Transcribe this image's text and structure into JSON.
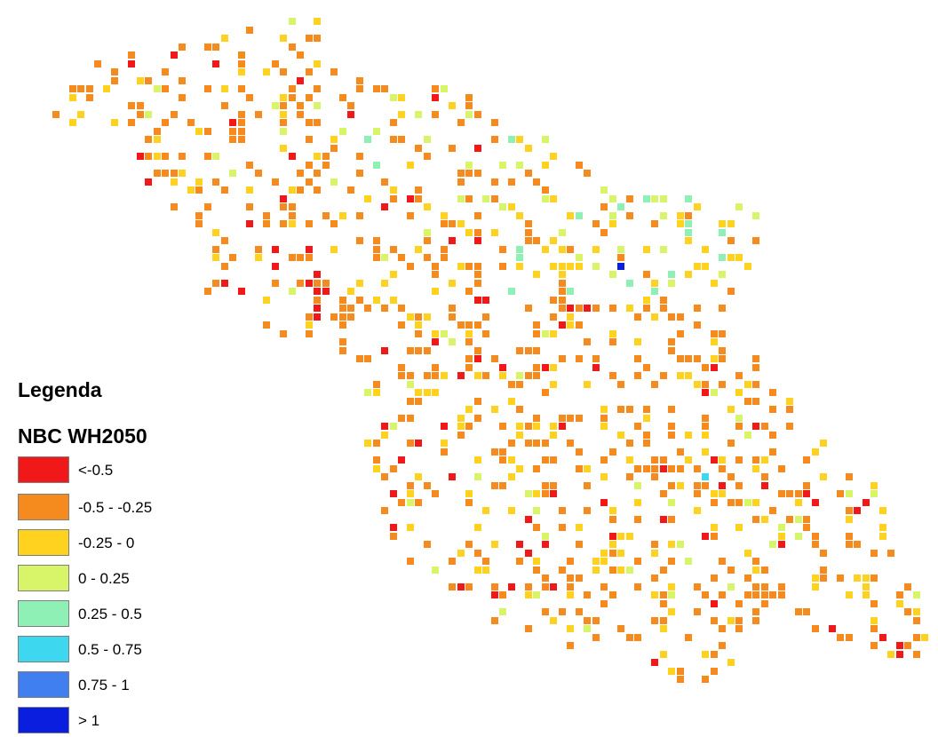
{
  "legend": {
    "title": "Legenda",
    "subtitle": "NBC WH2050",
    "classes": [
      {
        "label": "<-0.5",
        "color": "#f01818"
      },
      {
        "label": "-0.5 - -0.25",
        "color": "#f58a1e"
      },
      {
        "label": "-0.25 - 0",
        "color": "#ffd21f"
      },
      {
        "label": "0 - 0.25",
        "color": "#d8f56a"
      },
      {
        "label": "0.25 - 0.5",
        "color": "#8ef0b4"
      },
      {
        "label": "0.5 - 0.75",
        "color": "#3dd8f0"
      },
      {
        "label": "0.75 - 1",
        "color": "#3f7ff0"
      },
      {
        "label": "> 1",
        "color": "#0a1ee0"
      }
    ]
  }
}
